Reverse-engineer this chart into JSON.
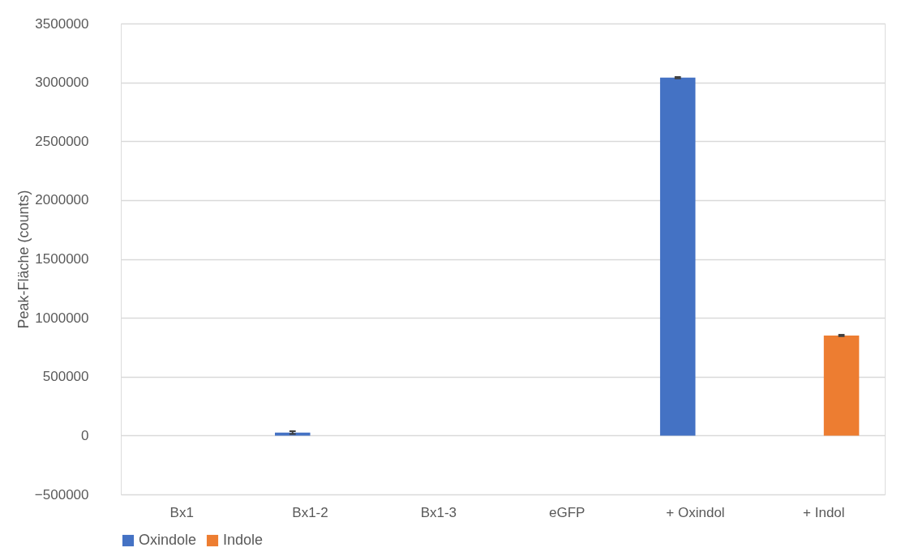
{
  "chart_data": {
    "type": "bar",
    "ylabel": "Peak-Fläche (counts)",
    "categories": [
      "Bx1",
      "Bx1-2",
      "Bx1-3",
      "eGFP",
      "+ Oxindol",
      "+ Indol"
    ],
    "series": [
      {
        "name": "Oxindole",
        "color": "#4472c4",
        "values": [
          0,
          25000,
          0,
          0,
          3040000,
          0
        ],
        "errors": [
          null,
          12000,
          null,
          null,
          6000,
          null
        ]
      },
      {
        "name": "Indole",
        "color": "#ed7d31",
        "values": [
          0,
          0,
          0,
          0,
          0,
          850000
        ],
        "errors": [
          null,
          null,
          null,
          null,
          null,
          6000
        ]
      }
    ],
    "ylim": [
      -500000,
      3500000
    ],
    "yticks": [
      -500000,
      0,
      500000,
      1000000,
      1500000,
      2000000,
      2500000,
      3000000,
      3500000
    ],
    "grid": "y",
    "legend": "bottom"
  }
}
